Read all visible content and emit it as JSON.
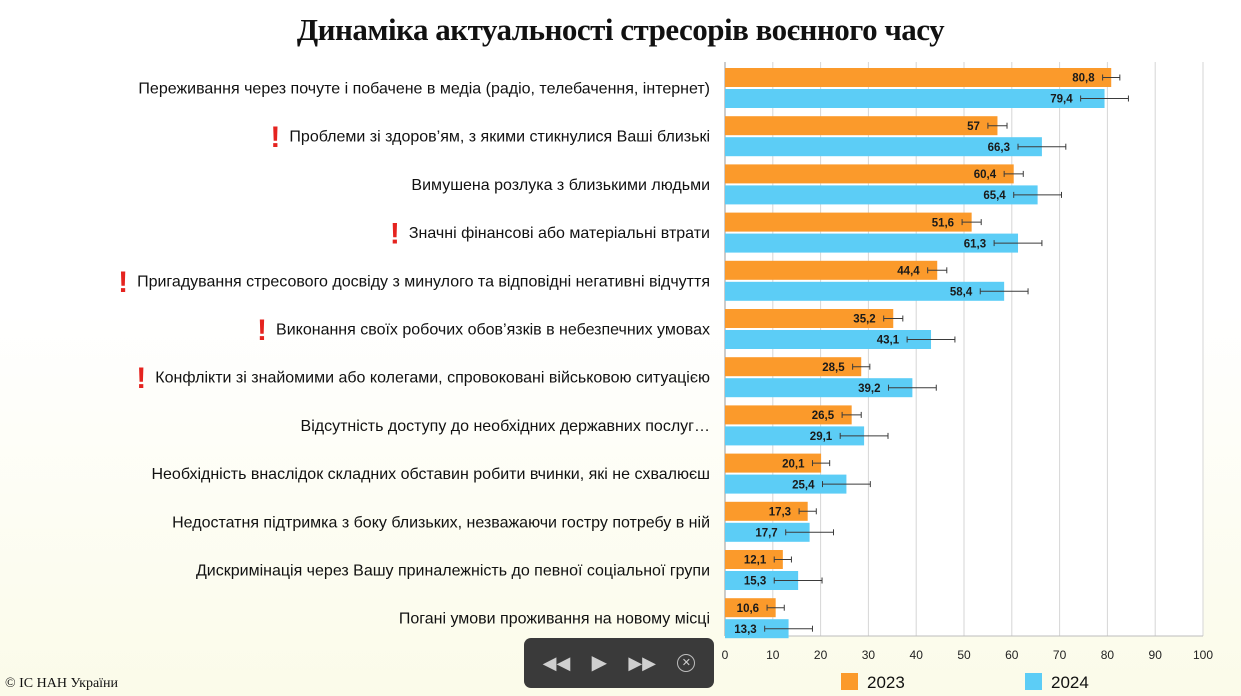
{
  "chart_data": {
    "type": "bar",
    "orientation": "horizontal",
    "title": "Динаміка актуальності стресорів воєнного часу",
    "xlim": [
      0,
      100
    ],
    "xticks": [
      0,
      10,
      20,
      30,
      40,
      50,
      60,
      70,
      80,
      90,
      100
    ],
    "grid": true,
    "error_bars": true,
    "legend_placement": "bottom",
    "categories": [
      "Переживання через почуте і побачене в медіа (радіо, телебачення, інтернет)",
      "Проблеми зі здоров’ям, з якими стикнулися Ваші близькі",
      "Вимушена розлука з близькими людьми",
      "Значні фінансові або матеріальні втрати",
      "Пригадування стресового досвіду з минулого та відповідні негативні відчуття",
      "Виконання своїх робочих обов’язків в небезпечних умовах",
      "Конфлікти зі знайомими або колегами, спровоковані військовою ситуацією",
      "Відсутність доступу до необхідних державних послуг…",
      "Необхідність внаслідок складних обставин робити вчинки, які не схвалюєш",
      "Недостатня підтримка з боку близьких, незважаючи гостру потребу в ній",
      "Дискримінація через Вашу приналежність до певної соціальної групи",
      "Погані умови проживання на новому місці"
    ],
    "flagged": [
      false,
      true,
      false,
      true,
      true,
      true,
      true,
      false,
      false,
      false,
      false,
      false
    ],
    "flag_symbol": "!",
    "series": [
      {
        "name": "2023",
        "color": "#fb9a2b",
        "values": [
          80.8,
          57,
          60.4,
          51.6,
          44.4,
          35.2,
          28.5,
          26.5,
          20.1,
          17.3,
          12.1,
          10.6
        ],
        "value_labels": [
          "80,8",
          "57",
          "60,4",
          "51,6",
          "44,4",
          "35,2",
          "28,5",
          "26,5",
          "20,1",
          "17,3",
          "12,1",
          "10,6"
        ],
        "errors": [
          1.8,
          2.0,
          2.0,
          2.0,
          2.0,
          2.0,
          1.8,
          2.0,
          1.8,
          1.8,
          1.8,
          1.8
        ]
      },
      {
        "name": "2024",
        "color": "#5ccdf6",
        "values": [
          79.4,
          66.3,
          65.4,
          61.3,
          58.4,
          43.1,
          39.2,
          29.1,
          25.4,
          17.7,
          15.3,
          13.3
        ],
        "value_labels": [
          "79,4",
          "66,3",
          "65,4",
          "61,3",
          "58,4",
          "43,1",
          "39,2",
          "29,1",
          "25,4",
          "17,7",
          "15,3",
          "13,3"
        ],
        "errors": [
          5.0,
          5.0,
          5.0,
          5.0,
          5.0,
          5.0,
          5.0,
          5.0,
          5.0,
          5.0,
          5.0,
          5.0
        ]
      }
    ]
  },
  "footer": {
    "copyright": "© ІС НАН України"
  },
  "player": {
    "rewind_icon": "rewind-icon",
    "play_icon": "play-icon",
    "forward_icon": "fast-forward-icon",
    "close_icon": "close-circle-icon"
  }
}
